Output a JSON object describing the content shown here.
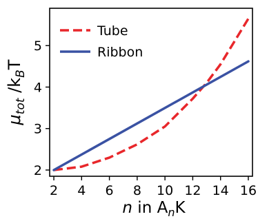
{
  "chart_data": {
    "type": "line",
    "xlabel": {
      "pre": "n",
      "mid": " in A",
      "sub": "n",
      "post": "K"
    },
    "ylabel": {
      "mu": "μ",
      "musub": "tot",
      "mid": " /k",
      "ksub": "B",
      "post": "T"
    },
    "xlim": [
      1.7,
      16.3
    ],
    "ylim": [
      1.85,
      5.9
    ],
    "xticks": [
      2,
      4,
      6,
      8,
      10,
      12,
      14,
      16
    ],
    "yticks": [
      2,
      3,
      4,
      5
    ],
    "grid": false,
    "legend_position": "top-left",
    "series": [
      {
        "name": "Tube",
        "color": "#e8272b",
        "dashed": true,
        "x": [
          2,
          4,
          6,
          8,
          10,
          12,
          13,
          14,
          16
        ],
        "y": [
          2.0,
          2.08,
          2.3,
          2.62,
          3.05,
          3.72,
          4.1,
          4.55,
          5.65
        ]
      },
      {
        "name": "Ribbon",
        "color": "#3a52a3",
        "dashed": false,
        "x": [
          2,
          16
        ],
        "y": [
          2.0,
          4.62
        ]
      }
    ]
  }
}
